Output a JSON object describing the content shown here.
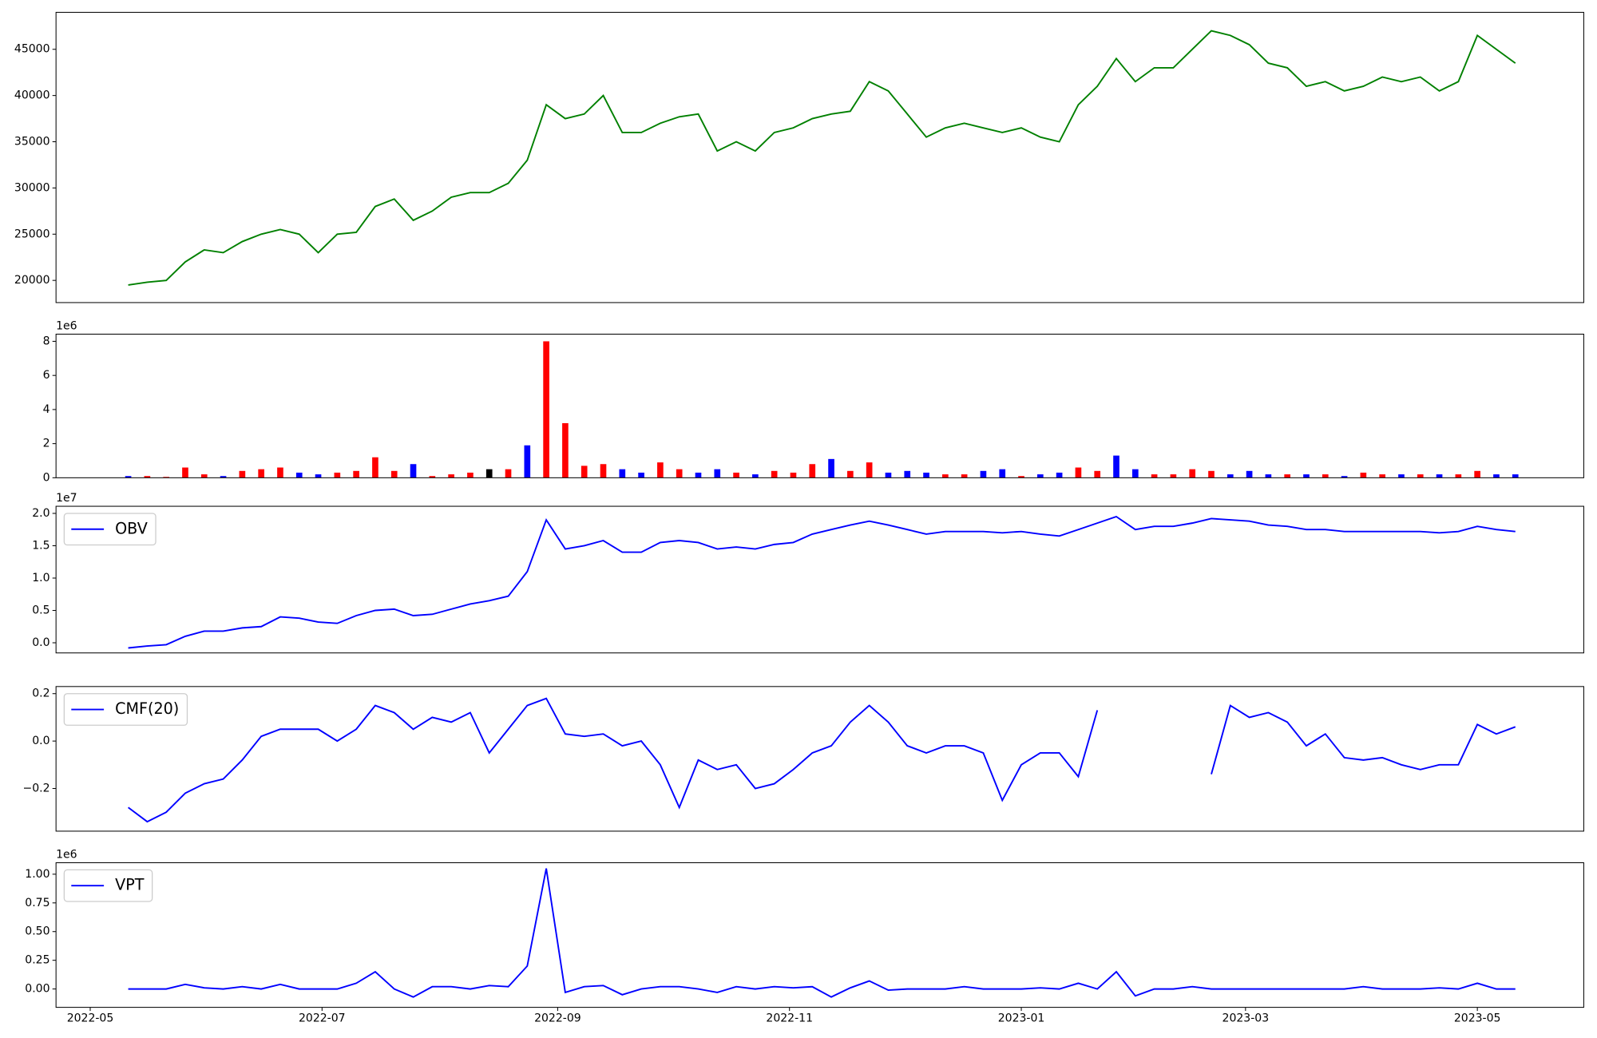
{
  "chart_data": [
    {
      "type": "line",
      "color": "green",
      "x": [
        "2022-05-11",
        "2022-05-16",
        "2022-05-21",
        "2022-05-26",
        "2022-05-31",
        "2022-06-05",
        "2022-06-10",
        "2022-06-15",
        "2022-06-20",
        "2022-06-25",
        "2022-06-30",
        "2022-07-05",
        "2022-07-10",
        "2022-07-15",
        "2022-07-20",
        "2022-07-25",
        "2022-07-30",
        "2022-08-04",
        "2022-08-09",
        "2022-08-14",
        "2022-08-19",
        "2022-08-24",
        "2022-08-29",
        "2022-09-03",
        "2022-09-08",
        "2022-09-13",
        "2022-09-18",
        "2022-09-23",
        "2022-09-28",
        "2022-10-03",
        "2022-10-08",
        "2022-10-13",
        "2022-10-18",
        "2022-10-23",
        "2022-10-28",
        "2022-11-02",
        "2022-11-07",
        "2022-11-12",
        "2022-11-17",
        "2022-11-22",
        "2022-11-27",
        "2022-12-02",
        "2022-12-07",
        "2022-12-12",
        "2022-12-17",
        "2022-12-22",
        "2022-12-27",
        "2023-01-01",
        "2023-01-06",
        "2023-01-11",
        "2023-01-16",
        "2023-01-21",
        "2023-01-26",
        "2023-01-31",
        "2023-02-05",
        "2023-02-10",
        "2023-02-15",
        "2023-02-20",
        "2023-02-25",
        "2023-03-02",
        "2023-03-07",
        "2023-03-12",
        "2023-03-17",
        "2023-03-22",
        "2023-03-27",
        "2023-04-01",
        "2023-04-06",
        "2023-04-11",
        "2023-04-16",
        "2023-04-21",
        "2023-04-26",
        "2023-05-01",
        "2023-05-06",
        "2023-05-11"
      ],
      "values": [
        19500,
        19800,
        20000,
        22000,
        23300,
        23000,
        24200,
        25000,
        25500,
        25000,
        23000,
        25000,
        25200,
        28000,
        28800,
        26500,
        27500,
        29000,
        29500,
        29500,
        30500,
        33000,
        39000,
        37500,
        38000,
        40000,
        36000,
        36000,
        37000,
        37700,
        38000,
        34000,
        35000,
        34000,
        36000,
        36500,
        37500,
        38000,
        38300,
        41500,
        40500,
        38000,
        35500,
        36500,
        37000,
        36500,
        36000,
        36500,
        35500,
        35000,
        39000,
        41000,
        44000,
        41500,
        43000,
        43000,
        45000,
        47000,
        46500,
        45500,
        43500,
        43000,
        41000,
        41500,
        40500,
        41000,
        42000,
        41500,
        42000,
        40500,
        41500,
        46500,
        45000,
        43500
      ],
      "xlim": [
        "2022-04-22",
        "2023-05-29"
      ],
      "ylim": [
        17600,
        49000
      ],
      "yticks": [
        20000,
        25000,
        30000,
        35000,
        40000,
        45000
      ]
    },
    {
      "type": "bar",
      "offset_label": "1e6",
      "x": [
        "2022-05-11",
        "2022-05-16",
        "2022-05-21",
        "2022-05-26",
        "2022-05-31",
        "2022-06-05",
        "2022-06-10",
        "2022-06-15",
        "2022-06-20",
        "2022-06-25",
        "2022-06-30",
        "2022-07-05",
        "2022-07-10",
        "2022-07-15",
        "2022-07-20",
        "2022-07-25",
        "2022-07-30",
        "2022-08-04",
        "2022-08-09",
        "2022-08-14",
        "2022-08-19",
        "2022-08-24",
        "2022-08-29",
        "2022-09-03",
        "2022-09-08",
        "2022-09-13",
        "2022-09-18",
        "2022-09-23",
        "2022-09-28",
        "2022-10-03",
        "2022-10-08",
        "2022-10-13",
        "2022-10-18",
        "2022-10-23",
        "2022-10-28",
        "2022-11-02",
        "2022-11-07",
        "2022-11-12",
        "2022-11-17",
        "2022-11-22",
        "2022-11-27",
        "2022-12-02",
        "2022-12-07",
        "2022-12-12",
        "2022-12-17",
        "2022-12-22",
        "2022-12-27",
        "2023-01-01",
        "2023-01-06",
        "2023-01-11",
        "2023-01-16",
        "2023-01-21",
        "2023-01-26",
        "2023-01-31",
        "2023-02-05",
        "2023-02-10",
        "2023-02-15",
        "2023-02-20",
        "2023-02-25",
        "2023-03-02",
        "2023-03-07",
        "2023-03-12",
        "2023-03-17",
        "2023-03-22",
        "2023-03-27",
        "2023-04-01",
        "2023-04-06",
        "2023-04-11",
        "2023-04-16",
        "2023-04-21",
        "2023-04-26",
        "2023-05-01",
        "2023-05-06",
        "2023-05-11"
      ],
      "values": [
        0.1,
        0.1,
        0.05,
        0.6,
        0.2,
        0.1,
        0.4,
        0.5,
        0.6,
        0.3,
        0.2,
        0.3,
        0.4,
        1.2,
        0.4,
        0.8,
        0.1,
        0.2,
        0.3,
        0.5,
        0.5,
        1.9,
        8.0,
        3.2,
        0.7,
        0.8,
        0.5,
        0.3,
        0.9,
        0.5,
        0.3,
        0.5,
        0.3,
        0.2,
        0.4,
        0.3,
        0.8,
        1.1,
        0.4,
        0.9,
        0.3,
        0.4,
        0.3,
        0.2,
        0.2,
        0.4,
        0.5,
        0.1,
        0.2,
        0.3,
        0.6,
        0.4,
        1.3,
        0.5,
        0.2,
        0.2,
        0.5,
        0.4,
        0.2,
        0.4,
        0.2,
        0.2,
        0.2,
        0.2,
        0.1,
        0.3,
        0.2,
        0.2,
        0.2,
        0.2,
        0.2,
        0.4,
        0.2,
        0.2
      ],
      "colors": [
        "blue",
        "red",
        "red",
        "red",
        "red",
        "blue",
        "red",
        "red",
        "red",
        "blue",
        "blue",
        "red",
        "red",
        "red",
        "red",
        "blue",
        "red",
        "red",
        "red",
        "black",
        "red",
        "blue",
        "red",
        "red",
        "red",
        "red",
        "blue",
        "blue",
        "red",
        "red",
        "blue",
        "blue",
        "red",
        "blue",
        "red",
        "red",
        "red",
        "blue",
        "red",
        "red",
        "blue",
        "blue",
        "blue",
        "red",
        "red",
        "blue",
        "blue",
        "red",
        "blue",
        "blue",
        "red",
        "red",
        "blue",
        "blue",
        "red",
        "red",
        "red",
        "red",
        "blue",
        "blue",
        "blue",
        "red",
        "blue",
        "red",
        "blue",
        "red",
        "red",
        "blue",
        "red",
        "blue",
        "red",
        "red",
        "blue",
        "blue"
      ],
      "xlim": [
        "2022-04-22",
        "2023-05-29"
      ],
      "ylim": [
        0,
        8.42
      ],
      "yticks": [
        0,
        2,
        4,
        6,
        8
      ]
    },
    {
      "type": "line",
      "offset_label": "1e7",
      "legend": "upper left",
      "x": [
        "2022-05-11",
        "2022-05-16",
        "2022-05-21",
        "2022-05-26",
        "2022-05-31",
        "2022-06-05",
        "2022-06-10",
        "2022-06-15",
        "2022-06-20",
        "2022-06-25",
        "2022-06-30",
        "2022-07-05",
        "2022-07-10",
        "2022-07-15",
        "2022-07-20",
        "2022-07-25",
        "2022-07-30",
        "2022-08-04",
        "2022-08-09",
        "2022-08-14",
        "2022-08-19",
        "2022-08-24",
        "2022-08-29",
        "2022-09-03",
        "2022-09-08",
        "2022-09-13",
        "2022-09-18",
        "2022-09-23",
        "2022-09-28",
        "2022-10-03",
        "2022-10-08",
        "2022-10-13",
        "2022-10-18",
        "2022-10-23",
        "2022-10-28",
        "2022-11-02",
        "2022-11-07",
        "2022-11-12",
        "2022-11-17",
        "2022-11-22",
        "2022-11-27",
        "2022-12-02",
        "2022-12-07",
        "2022-12-12",
        "2022-12-17",
        "2022-12-22",
        "2022-12-27",
        "2023-01-01",
        "2023-01-06",
        "2023-01-11",
        "2023-01-16",
        "2023-01-21",
        "2023-01-26",
        "2023-01-31",
        "2023-02-05",
        "2023-02-10",
        "2023-02-15",
        "2023-02-20",
        "2023-02-25",
        "2023-03-02",
        "2023-03-07",
        "2023-03-12",
        "2023-03-17",
        "2023-03-22",
        "2023-03-27",
        "2023-04-01",
        "2023-04-06",
        "2023-04-11",
        "2023-04-16",
        "2023-04-21",
        "2023-04-26",
        "2023-05-01",
        "2023-05-06",
        "2023-05-11"
      ],
      "series": [
        {
          "name": "OBV",
          "color": "blue",
          "values": [
            -0.08,
            -0.05,
            -0.03,
            0.1,
            0.18,
            0.18,
            0.23,
            0.25,
            0.4,
            0.38,
            0.32,
            0.3,
            0.42,
            0.5,
            0.52,
            0.42,
            0.44,
            0.52,
            0.6,
            0.65,
            0.72,
            1.1,
            1.9,
            1.45,
            1.5,
            1.58,
            1.4,
            1.4,
            1.55,
            1.58,
            1.55,
            1.45,
            1.48,
            1.45,
            1.52,
            1.55,
            1.68,
            1.75,
            1.82,
            1.88,
            1.82,
            1.75,
            1.68,
            1.72,
            1.72,
            1.72,
            1.7,
            1.72,
            1.68,
            1.65,
            1.75,
            1.85,
            1.95,
            1.75,
            1.8,
            1.8,
            1.85,
            1.92,
            1.9,
            1.88,
            1.82,
            1.8,
            1.75,
            1.75,
            1.72,
            1.72,
            1.72,
            1.72,
            1.72,
            1.7,
            1.72,
            1.8,
            1.75,
            1.72
          ]
        }
      ],
      "xlim": [
        "2022-04-22",
        "2023-05-29"
      ],
      "ylim": [
        -0.157,
        2.11
      ],
      "yticks": [
        {
          "value": 0,
          "label": "0.0"
        },
        0.5,
        {
          "value": 1,
          "label": "1.0"
        },
        1.5,
        {
          "value": 2,
          "label": "2.0"
        }
      ]
    },
    {
      "type": "line",
      "legend": "upper left",
      "x": [
        "2022-05-11",
        "2022-05-16",
        "2022-05-21",
        "2022-05-26",
        "2022-05-31",
        "2022-06-05",
        "2022-06-10",
        "2022-06-15",
        "2022-06-20",
        "2022-06-25",
        "2022-06-30",
        "2022-07-05",
        "2022-07-10",
        "2022-07-15",
        "2022-07-20",
        "2022-07-25",
        "2022-07-30",
        "2022-08-04",
        "2022-08-09",
        "2022-08-14",
        "2022-08-19",
        "2022-08-24",
        "2022-08-29",
        "2022-09-03",
        "2022-09-08",
        "2022-09-13",
        "2022-09-18",
        "2022-09-23",
        "2022-09-28",
        "2022-10-03",
        "2022-10-08",
        "2022-10-13",
        "2022-10-18",
        "2022-10-23",
        "2022-10-28",
        "2022-11-02",
        "2022-11-07",
        "2022-11-12",
        "2022-11-17",
        "2022-11-22",
        "2022-11-27",
        "2022-12-02",
        "2022-12-07",
        "2022-12-12",
        "2022-12-17",
        "2022-12-22",
        "2022-12-27",
        "2023-01-01",
        "2023-01-06",
        "2023-01-11",
        "2023-01-16",
        "2023-01-21",
        "2023-01-26",
        "2023-01-31",
        "2023-02-05",
        "2023-02-10",
        "2023-02-15",
        "2023-02-20",
        "2023-02-25",
        "2023-03-02",
        "2023-03-07",
        "2023-03-12",
        "2023-03-17",
        "2023-03-22",
        "2023-03-27",
        "2023-04-01",
        "2023-04-06",
        "2023-04-11",
        "2023-04-16",
        "2023-04-21",
        "2023-04-26",
        "2023-05-01",
        "2023-05-06",
        "2023-05-11"
      ],
      "series": [
        {
          "name": "CMF(20)",
          "color": "blue",
          "values": [
            -0.28,
            -0.34,
            -0.3,
            -0.22,
            -0.18,
            -0.16,
            -0.08,
            0.02,
            0.05,
            0.05,
            0.05,
            0.0,
            0.05,
            0.15,
            0.12,
            0.05,
            0.1,
            0.08,
            0.12,
            -0.05,
            0.05,
            0.15,
            0.18,
            0.03,
            0.02,
            0.03,
            -0.02,
            0.0,
            -0.1,
            -0.28,
            -0.08,
            -0.12,
            -0.1,
            -0.2,
            -0.18,
            -0.12,
            -0.05,
            -0.02,
            0.08,
            0.15,
            0.08,
            -0.02,
            -0.05,
            -0.02,
            -0.02,
            -0.05,
            -0.25,
            -0.1,
            -0.05,
            -0.05,
            -0.15,
            0.13,
            null,
            null,
            null,
            null,
            null,
            -0.14,
            0.15,
            0.1,
            0.12,
            0.08,
            -0.02,
            0.03,
            -0.07,
            -0.08,
            -0.07,
            -0.1,
            -0.12,
            -0.1,
            -0.1,
            0.07,
            0.03,
            0.06
          ]
        }
      ],
      "xlim": [
        "2022-04-22",
        "2023-05-29"
      ],
      "ylim": [
        -0.38,
        0.23
      ],
      "yticks": [
        {
          "value": -0.2,
          "label": "−0.2"
        },
        {
          "value": 0,
          "label": "0.0"
        },
        0.2
      ]
    },
    {
      "type": "line",
      "offset_label": "1e6",
      "legend": "upper left",
      "x": [
        "2022-05-11",
        "2022-05-16",
        "2022-05-21",
        "2022-05-26",
        "2022-05-31",
        "2022-06-05",
        "2022-06-10",
        "2022-06-15",
        "2022-06-20",
        "2022-06-25",
        "2022-06-30",
        "2022-07-05",
        "2022-07-10",
        "2022-07-15",
        "2022-07-20",
        "2022-07-25",
        "2022-07-30",
        "2022-08-04",
        "2022-08-09",
        "2022-08-14",
        "2022-08-19",
        "2022-08-24",
        "2022-08-29",
        "2022-09-03",
        "2022-09-08",
        "2022-09-13",
        "2022-09-18",
        "2022-09-23",
        "2022-09-28",
        "2022-10-03",
        "2022-10-08",
        "2022-10-13",
        "2022-10-18",
        "2022-10-23",
        "2022-10-28",
        "2022-11-02",
        "2022-11-07",
        "2022-11-12",
        "2022-11-17",
        "2022-11-22",
        "2022-11-27",
        "2022-12-02",
        "2022-12-07",
        "2022-12-12",
        "2022-12-17",
        "2022-12-22",
        "2022-12-27",
        "2023-01-01",
        "2023-01-06",
        "2023-01-11",
        "2023-01-16",
        "2023-01-21",
        "2023-01-26",
        "2023-01-31",
        "2023-02-05",
        "2023-02-10",
        "2023-02-15",
        "2023-02-20",
        "2023-02-25",
        "2023-03-02",
        "2023-03-07",
        "2023-03-12",
        "2023-03-17",
        "2023-03-22",
        "2023-03-27",
        "2023-04-01",
        "2023-04-06",
        "2023-04-11",
        "2023-04-16",
        "2023-04-21",
        "2023-04-26",
        "2023-05-01",
        "2023-05-06",
        "2023-05-11"
      ],
      "series": [
        {
          "name": "VPT",
          "color": "blue",
          "values": [
            0.0,
            0.0,
            0.0,
            0.04,
            0.01,
            0.0,
            0.02,
            0.0,
            0.04,
            0.0,
            0.0,
            0.0,
            0.05,
            0.15,
            0.0,
            -0.07,
            0.02,
            0.02,
            0.0,
            0.03,
            0.02,
            0.2,
            1.05,
            -0.03,
            0.02,
            0.03,
            -0.05,
            0.0,
            0.02,
            0.02,
            0.0,
            -0.03,
            0.02,
            0.0,
            0.02,
            0.01,
            0.02,
            -0.07,
            0.01,
            0.07,
            -0.01,
            0.0,
            0.0,
            0.0,
            0.02,
            0.0,
            0.0,
            0.0,
            0.01,
            0.0,
            0.05,
            0.0,
            0.15,
            -0.06,
            0.0,
            0.0,
            0.02,
            0.0,
            0.0,
            0.0,
            0.0,
            0.0,
            0.0,
            0.0,
            0.0,
            0.02,
            0.0,
            0.0,
            0.0,
            0.01,
            0.0,
            0.05,
            0.0,
            0.0
          ]
        }
      ],
      "xlim": [
        "2022-04-22",
        "2023-05-29"
      ],
      "ylim": [
        -0.16,
        1.1
      ],
      "yticks": [
        {
          "value": 0,
          "label": "0.00"
        },
        {
          "value": 0.25,
          "label": "0.25"
        },
        {
          "value": 0.5,
          "label": "0.50"
        },
        {
          "value": 0.75,
          "label": "0.75"
        },
        {
          "value": 1,
          "label": "1.00"
        }
      ],
      "xticks": [
        {
          "value": "2022-05-01",
          "label": "2022-05"
        },
        {
          "value": "2022-07-01",
          "label": "2022-07"
        },
        {
          "value": "2022-09-01",
          "label": "2022-09"
        },
        {
          "value": "2022-11-01",
          "label": "2022-11"
        },
        {
          "value": "2023-01-01",
          "label": "2023-01"
        },
        {
          "value": "2023-03-01",
          "label": "2023-03"
        },
        {
          "value": "2023-05-01",
          "label": "2023-05"
        }
      ]
    }
  ]
}
